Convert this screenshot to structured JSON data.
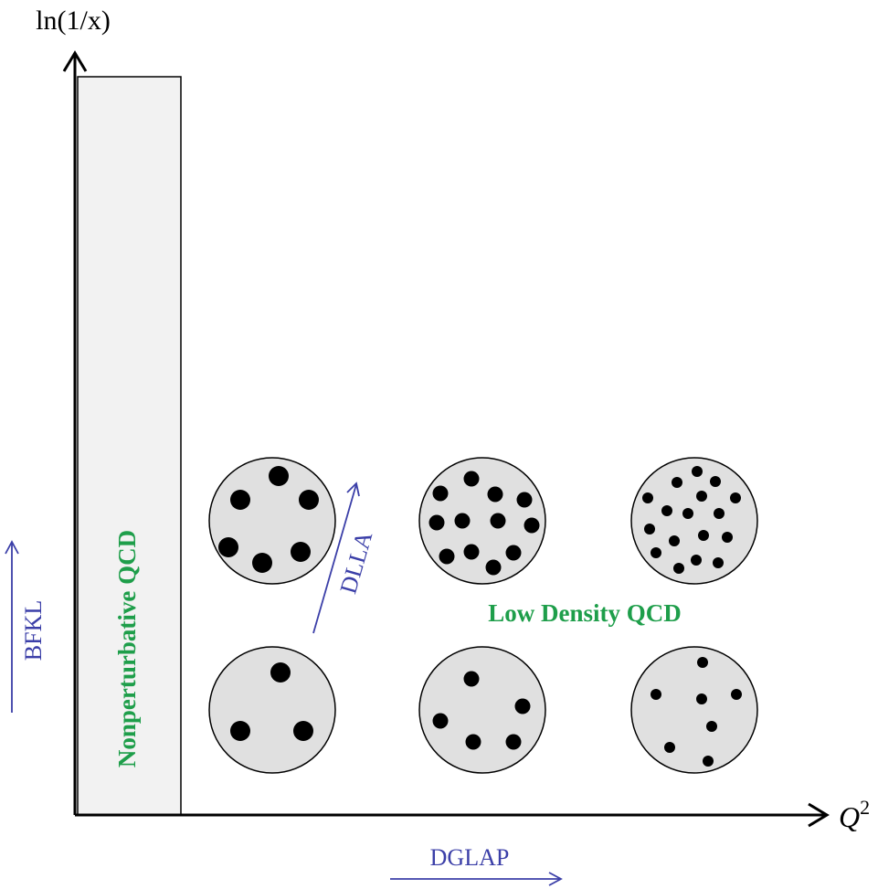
{
  "axes": {
    "y_label": "ln(1/x)",
    "x_label": {
      "base": "Q",
      "superscript": "2"
    }
  },
  "regions": {
    "nonperturbative": "Nonperturbative QCD",
    "low_density": "Low Density QCD"
  },
  "evolution": {
    "bfkl": "BFKL",
    "dlla": "DLLA",
    "dglap": "DGLAP"
  }
}
